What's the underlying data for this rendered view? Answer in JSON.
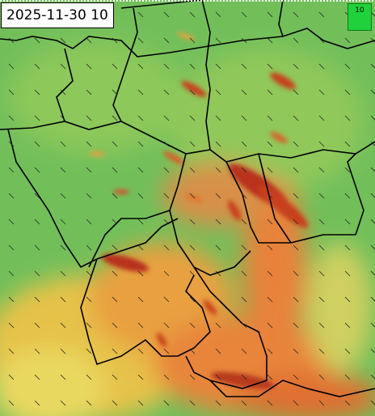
{
  "timestamp": "2025-11-30 10",
  "legend": {
    "label": "10"
  }
}
